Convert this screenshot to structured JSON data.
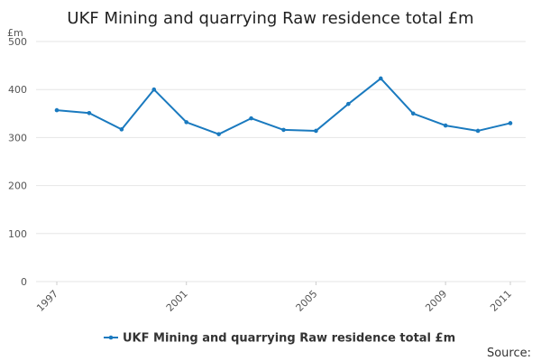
{
  "chart_data": {
    "type": "line",
    "title": "UKF Mining and quarrying Raw residence total £m",
    "ylabel": "£m",
    "xlabel": "",
    "ylim": [
      0,
      500
    ],
    "yticks": [
      0,
      100,
      200,
      300,
      400,
      500
    ],
    "xtick_labels": [
      "1997",
      "2001",
      "2005",
      "2009",
      "2011"
    ],
    "x": [
      1997,
      1998,
      1999,
      2000,
      2001,
      2002,
      2003,
      2004,
      2005,
      2006,
      2007,
      2008,
      2009,
      2010,
      2011
    ],
    "series": [
      {
        "name": "UKF Mining and quarrying Raw residence total £m",
        "color": "#1a7abf",
        "values": [
          357,
          351,
          317,
          400,
          332,
          307,
          340,
          316,
          314,
          370,
          423,
          350,
          325,
          314,
          330
        ]
      }
    ],
    "grid": true,
    "legend": "bottom-center"
  },
  "source_label": "Source:"
}
